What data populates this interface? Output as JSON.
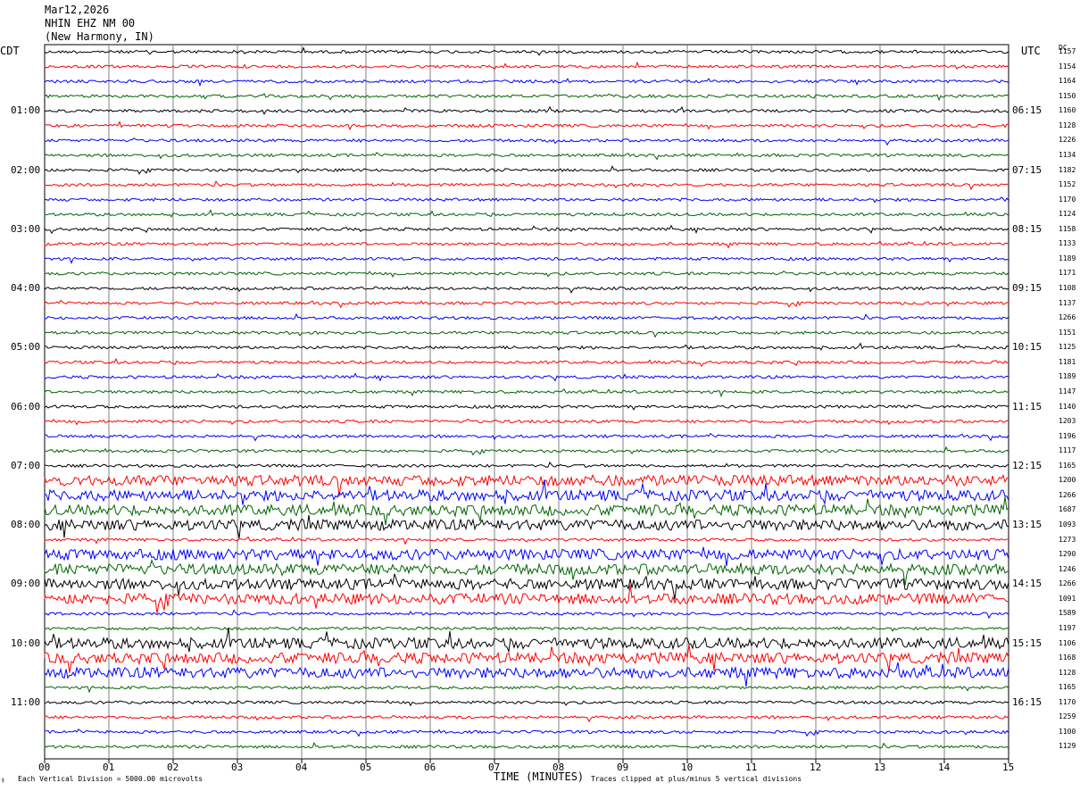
{
  "header": {
    "date": "Mar12,2026",
    "station": "NHIN EHZ NM 00",
    "location": "(New Harmony, IN)"
  },
  "left_tz": "CDT",
  "right_tz": "UTC",
  "dc_header": "DC",
  "left_hours": [
    "01:00",
    "02:00",
    "03:00",
    "04:00",
    "05:00",
    "06:00",
    "07:00",
    "08:00",
    "09:00",
    "10:00",
    "11:00"
  ],
  "right_hours": [
    "06:15",
    "07:15",
    "08:15",
    "09:15",
    "10:15",
    "11:15",
    "12:15",
    "13:15",
    "14:15",
    "15:15",
    "16:15"
  ],
  "dc_values": [
    "1157",
    "1154",
    "1164",
    "1150",
    "1160",
    "1128",
    "1226",
    "1134",
    "1182",
    "1152",
    "1170",
    "1124",
    "1158",
    "1133",
    "1189",
    "1171",
    "1108",
    "1137",
    "1266",
    "1151",
    "1125",
    "1181",
    "1189",
    "1147",
    "1140",
    "1203",
    "1196",
    "1117",
    "1165",
    "1200",
    "1266",
    "1687",
    "1093",
    "1273",
    "1290",
    "1246",
    "1266",
    "1091",
    "1589",
    "1197",
    "1106",
    "1168",
    "1128",
    "1165",
    "1170",
    "1259",
    "1100",
    "1129"
  ],
  "footer": {
    "left": "Each Vertical Division = 5000.00 microvolts",
    "center": "TIME (MINUTES)",
    "right": "Traces clipped at plus/minus 5 vertical divisions",
    "corner": "⚕"
  },
  "colors": {
    "traces": [
      "#000000",
      "#ff0000",
      "#0000ff",
      "#006400"
    ],
    "grid": "#808080"
  },
  "chart_data": {
    "type": "line",
    "title": "",
    "xlabel": "TIME (MINUTES)",
    "ylabel": "",
    "xlim": [
      0,
      15
    ],
    "x_ticks": [
      "00",
      "01",
      "02",
      "03",
      "04",
      "05",
      "06",
      "07",
      "08",
      "09",
      "10",
      "11",
      "12",
      "13",
      "14",
      "15"
    ],
    "rows": 48,
    "row_minutes": 15,
    "start_time_cdt": "00:00",
    "series_colors": [
      "#000000",
      "#ff0000",
      "#0000ff",
      "#006400"
    ],
    "noisy_rows": [
      29,
      30,
      31,
      32,
      34,
      35,
      36,
      37,
      40,
      41,
      42
    ]
  }
}
